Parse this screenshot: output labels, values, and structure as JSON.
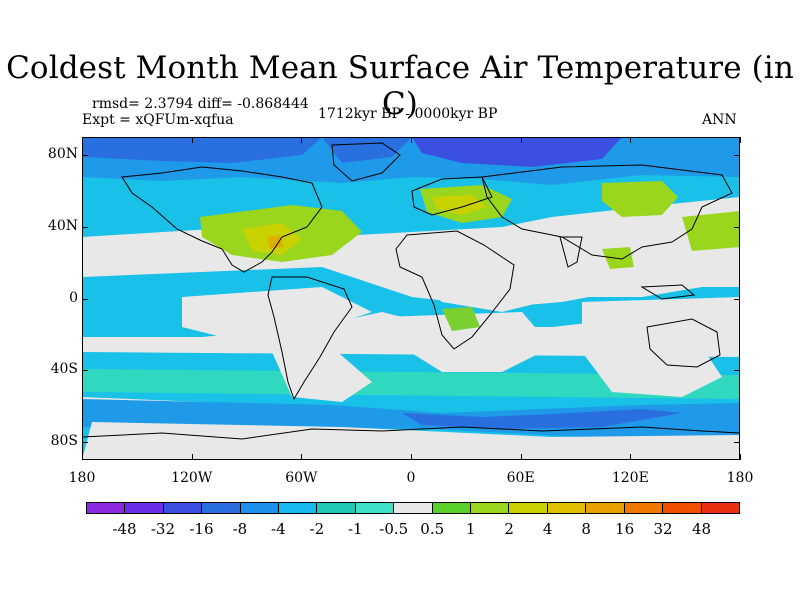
{
  "title": "Coldest Month Mean Surface Air Temperature (in C)",
  "stats": "rmsd= 2.3794 diff= -0.868444",
  "experiment": "Expt = xQFUm-xqfua",
  "period": "1712kyr BP - 0000kyr BP",
  "season": "ANN",
  "lat_labels": [
    {
      "text": "80N",
      "lat": 80
    },
    {
      "text": "40N",
      "lat": 40
    },
    {
      "text": "0",
      "lat": 0
    },
    {
      "text": "40S",
      "lat": -40
    },
    {
      "text": "80S",
      "lat": -80
    }
  ],
  "lon_labels": [
    {
      "text": "180",
      "lon": -180
    },
    {
      "text": "120W",
      "lon": -120
    },
    {
      "text": "60W",
      "lon": -60
    },
    {
      "text": "0",
      "lon": 0
    },
    {
      "text": "60E",
      "lon": 60
    },
    {
      "text": "120E",
      "lon": 120
    },
    {
      "text": "180",
      "lon": 180
    }
  ],
  "colorbar": {
    "colors": [
      "#8a2be2",
      "#6a2ee8",
      "#3b4fe0",
      "#2a6fe0",
      "#1e90f0",
      "#19b8f0",
      "#20c8b8",
      "#40e0c8",
      "#e8e8e8",
      "#5ad02a",
      "#9ad61e",
      "#c8d200",
      "#e0c000",
      "#e8a000",
      "#f07800",
      "#f05000",
      "#e83010"
    ],
    "labels": [
      "-48",
      "-32",
      "-16",
      "-8",
      "-4",
      "-2",
      "-1",
      "-0.5",
      "0.5",
      "1",
      "2",
      "4",
      "8",
      "16",
      "32",
      "48"
    ]
  },
  "palette": {
    "neutral": "#e8e8e8",
    "cyan": "#19c0e8",
    "sky": "#1e9ae8",
    "blue": "#2a6fe0",
    "deep": "#3b4fe0",
    "teal": "#30d8c0",
    "green": "#9ad61e",
    "lime": "#7ad030",
    "yellow": "#c8d200",
    "orange": "#e0b000"
  }
}
